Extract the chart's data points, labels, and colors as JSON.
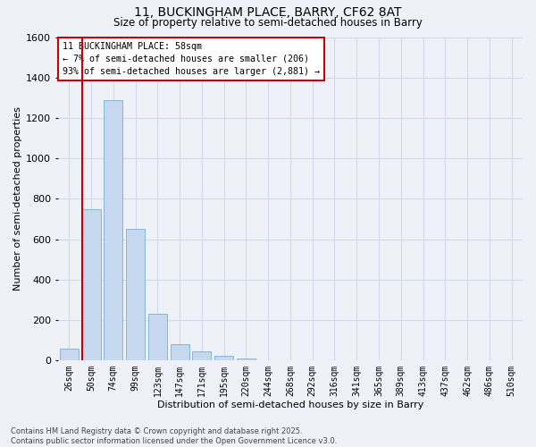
{
  "title": "11, BUCKINGHAM PLACE, BARRY, CF62 8AT",
  "subtitle": "Size of property relative to semi-detached houses in Barry",
  "xlabel": "Distribution of semi-detached houses by size in Barry",
  "ylabel": "Number of semi-detached properties",
  "bar_labels": [
    "26sqm",
    "50sqm",
    "74sqm",
    "99sqm",
    "123sqm",
    "147sqm",
    "171sqm",
    "195sqm",
    "220sqm",
    "244sqm",
    "268sqm",
    "292sqm",
    "316sqm",
    "341sqm",
    "365sqm",
    "389sqm",
    "413sqm",
    "437sqm",
    "462sqm",
    "486sqm",
    "510sqm"
  ],
  "bar_values": [
    60,
    750,
    1290,
    650,
    230,
    80,
    45,
    25,
    10,
    0,
    0,
    0,
    0,
    0,
    0,
    0,
    0,
    0,
    0,
    0,
    0
  ],
  "bar_color": "#c5d8f0",
  "bar_edge_color": "#7bafd4",
  "vline_color": "#cc0000",
  "vline_xindex": 1,
  "ylim": [
    0,
    1600
  ],
  "yticks": [
    0,
    200,
    400,
    600,
    800,
    1000,
    1200,
    1400,
    1600
  ],
  "annotation_title": "11 BUCKINGHAM PLACE: 58sqm",
  "annotation_line1": "← 7% of semi-detached houses are smaller (206)",
  "annotation_line2": "93% of semi-detached houses are larger (2,881) →",
  "annotation_box_facecolor": "#ffffff",
  "annotation_box_edgecolor": "#cc0000",
  "grid_color": "#d0d8e8",
  "background_color": "#eef2f8",
  "footer1": "Contains HM Land Registry data © Crown copyright and database right 2025.",
  "footer2": "Contains public sector information licensed under the Open Government Licence v3.0."
}
